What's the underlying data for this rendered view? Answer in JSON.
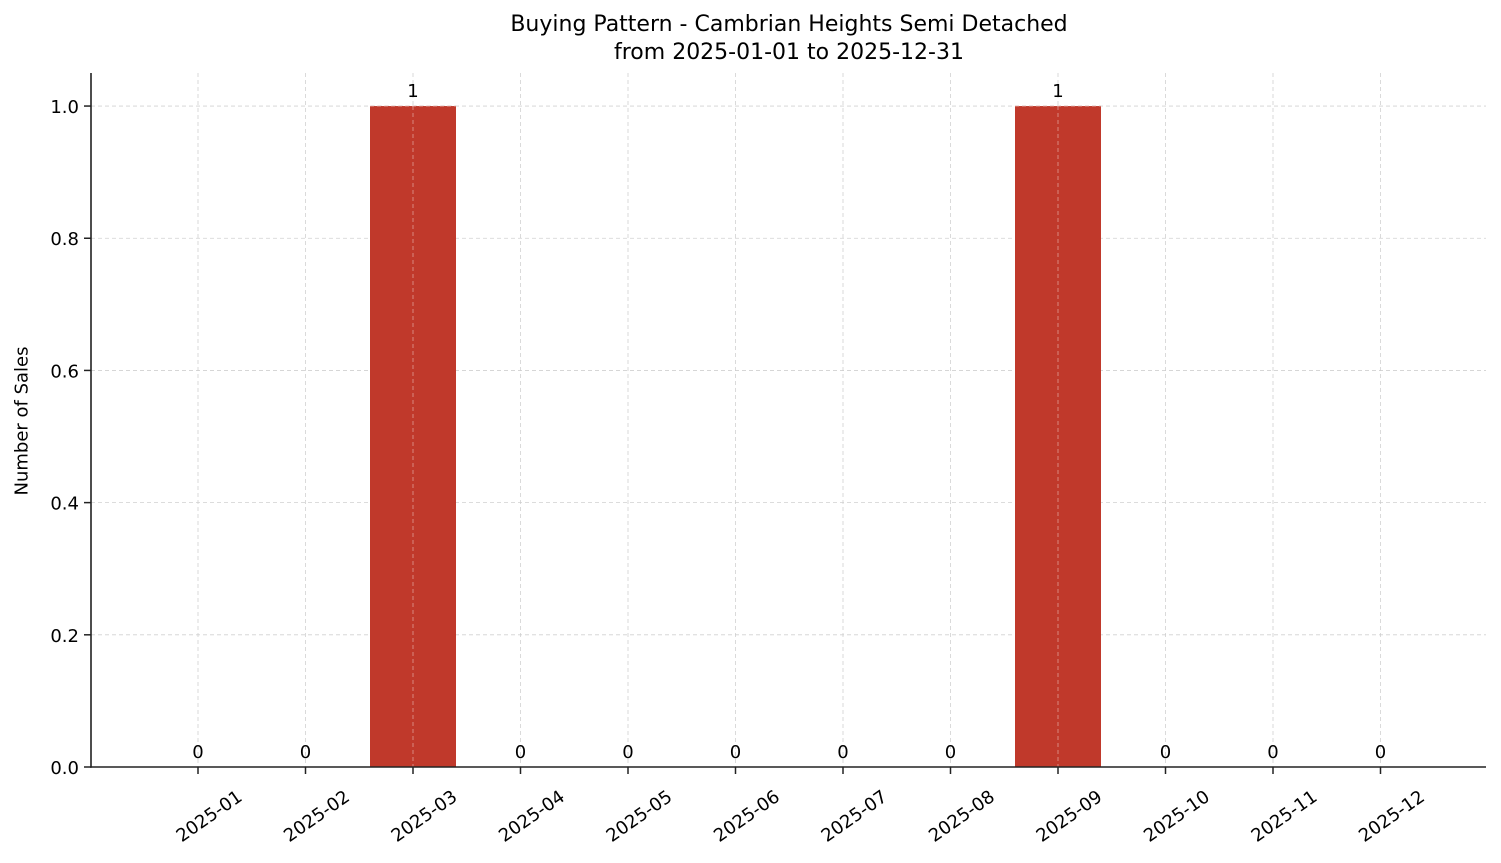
{
  "chart_data": {
    "type": "bar",
    "title": "Buying Pattern - Cambrian Heights Semi Detached",
    "subtitle": "from 2025-01-01 to 2025-12-31",
    "xlabel": "",
    "ylabel": "Number of Sales",
    "categories": [
      "2025-01",
      "2025-02",
      "2025-03",
      "2025-04",
      "2025-05",
      "2025-06",
      "2025-07",
      "2025-08",
      "2025-09",
      "2025-10",
      "2025-11",
      "2025-12"
    ],
    "values": [
      0,
      0,
      1,
      0,
      0,
      0,
      0,
      0,
      1,
      0,
      0,
      0
    ],
    "data_labels": [
      "0",
      "0",
      "1",
      "0",
      "0",
      "0",
      "0",
      "0",
      "1",
      "0",
      "0",
      "0"
    ],
    "ylim": [
      0,
      1.05
    ],
    "yticks": [
      "0.0",
      "0.2",
      "0.4",
      "0.6",
      "0.8",
      "1.0"
    ],
    "grid": true,
    "legend": null,
    "bar_color": "#c0392b"
  }
}
